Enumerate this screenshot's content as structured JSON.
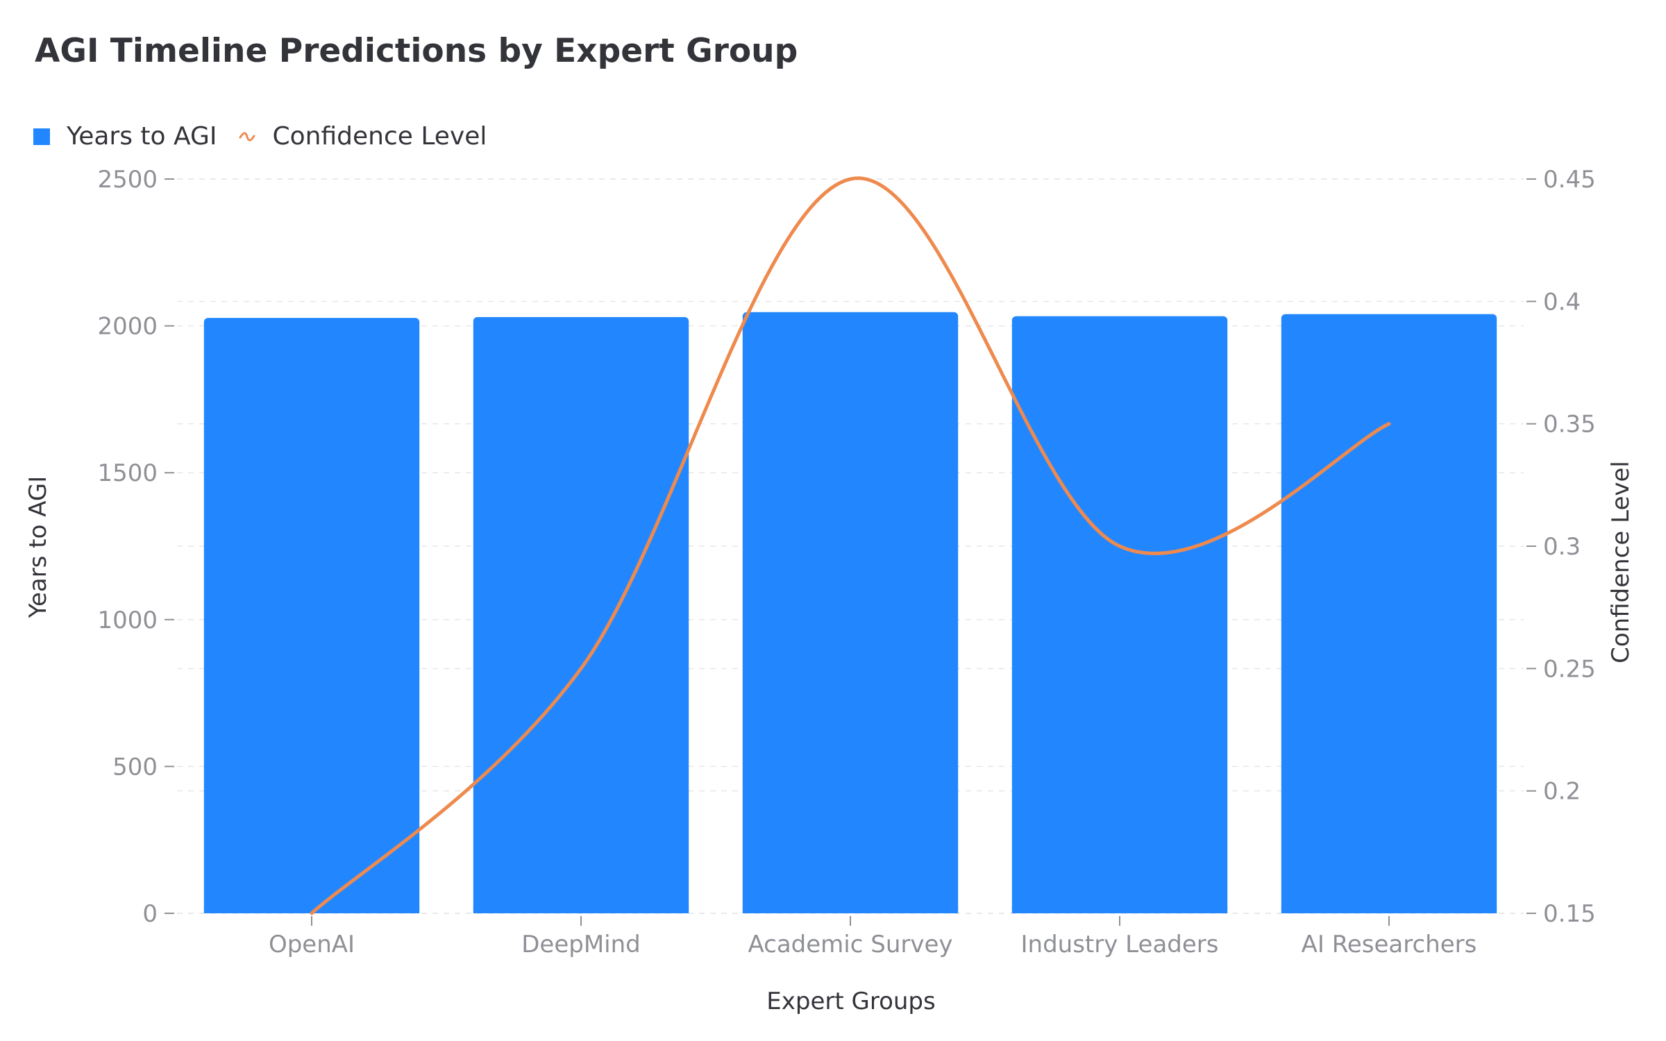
{
  "chart_data": {
    "type": "bar",
    "title": "AGI Timeline Predictions by Expert Group",
    "xlabel": "Expert Groups",
    "ylabel": "Years to AGI",
    "y2label": "Confidence Level",
    "categories": [
      "OpenAI",
      "DeepMind",
      "Academic Survey",
      "Industry Leaders",
      "AI Researchers"
    ],
    "series": [
      {
        "name": "Years to AGI",
        "type": "bar",
        "axis": "left",
        "values": [
          2027,
          2030,
          2047,
          2033,
          2040
        ]
      },
      {
        "name": "Confidence Level",
        "type": "line",
        "axis": "right",
        "values": [
          0.15,
          0.25,
          0.45,
          0.3,
          0.35
        ]
      }
    ],
    "ylim": [
      0,
      2500
    ],
    "y2lim": [
      0.15,
      0.45
    ],
    "yticks": [
      "0",
      "500",
      "1000",
      "1500",
      "2000",
      "2500"
    ],
    "y2ticks": [
      "0.15",
      "0.2",
      "0.25",
      "0.3",
      "0.35",
      "0.4",
      "0.45"
    ],
    "grid": true,
    "legend_position": "top-left",
    "colors": {
      "bar": "#2287ff",
      "line": "#ee8a4e",
      "text": "#33343a",
      "tick": "#8f9096",
      "grid": "#e6e6e6"
    }
  }
}
